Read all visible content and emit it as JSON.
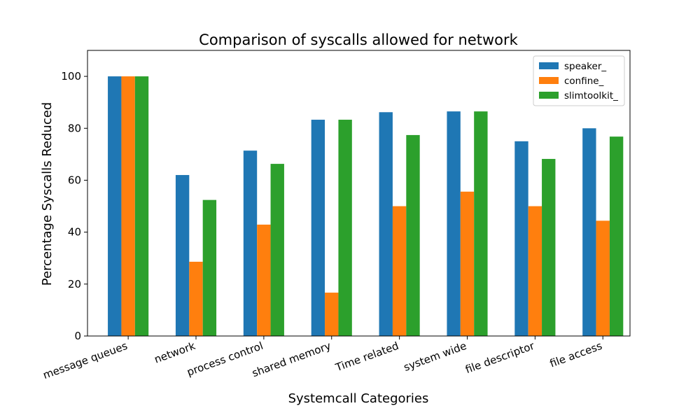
{
  "chart_data": {
    "type": "bar",
    "title": "Comparison of syscalls allowed for network",
    "xlabel": "Systemcall Categories",
    "ylabel": "Percentage Syscalls Reduced",
    "ylim": [
      0,
      110
    ],
    "yticks": [
      0,
      20,
      40,
      60,
      80,
      100
    ],
    "grid": false,
    "legend_position": "top-right",
    "categories": [
      "message queues",
      "network",
      "process control",
      "shared memory",
      "Time related",
      "system wide",
      "file descriptor",
      "file access"
    ],
    "series": [
      {
        "name": "speaker_",
        "color": "#1f77b4",
        "values": [
          100,
          62,
          71.4,
          83.3,
          86.2,
          86.5,
          75,
          80
        ]
      },
      {
        "name": "confine_",
        "color": "#ff7f0e",
        "values": [
          100,
          28.6,
          42.9,
          16.7,
          50,
          55.6,
          50,
          44.4
        ]
      },
      {
        "name": "slimtoolkit_",
        "color": "#2ca02c",
        "values": [
          100,
          52.4,
          66.3,
          83.3,
          77.4,
          86.5,
          68.2,
          76.8
        ]
      }
    ]
  }
}
